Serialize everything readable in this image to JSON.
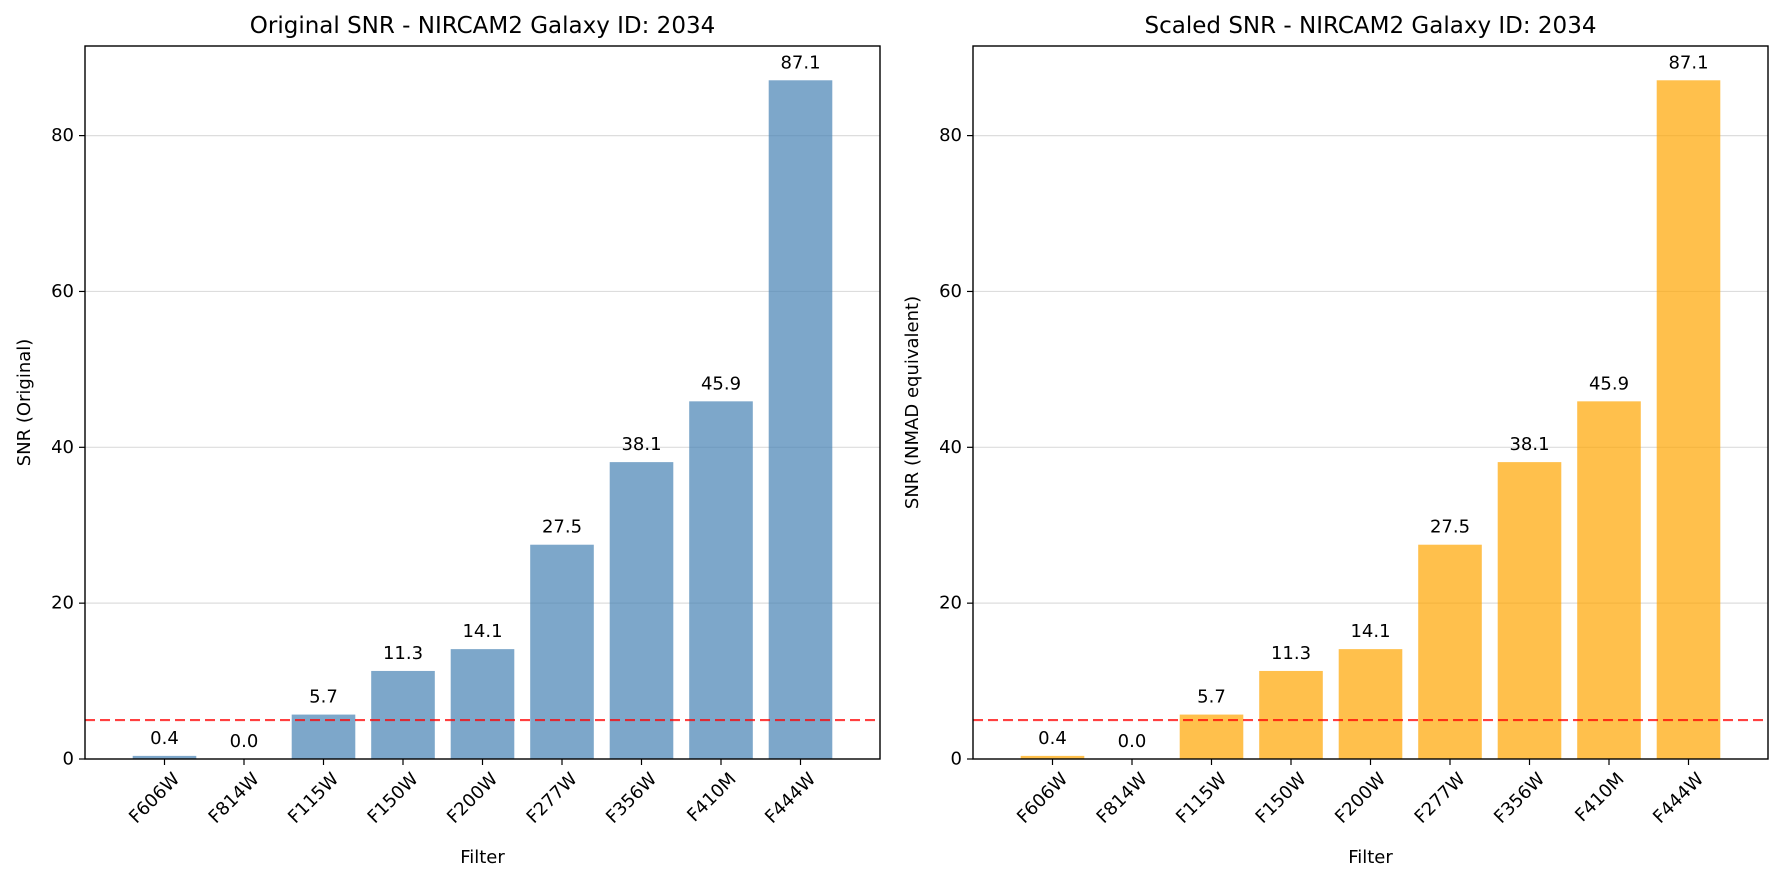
{
  "chart_data": [
    {
      "type": "bar",
      "title": "Original SNR - NIRCAM2 Galaxy ID: 2034",
      "xlabel": "Filter",
      "ylabel": "SNR (Original)",
      "categories": [
        "F606W",
        "F814W",
        "F115W",
        "F150W",
        "F200W",
        "F277W",
        "F356W",
        "F410M",
        "F444W"
      ],
      "values": [
        0.4,
        0.0,
        5.7,
        11.3,
        14.1,
        27.5,
        38.1,
        45.9,
        87.1
      ],
      "value_labels": [
        "0.4",
        "0.0",
        "5.7",
        "11.3",
        "14.1",
        "27.5",
        "38.1",
        "45.9",
        "87.1"
      ],
      "ylim": [
        0,
        91.5
      ],
      "yticks": [
        0,
        20,
        40,
        60,
        80
      ],
      "threshold": 5,
      "grid": "y",
      "bar_color": "#4682B4",
      "threshold_color": "#FF0000"
    },
    {
      "type": "bar",
      "title": "Scaled SNR - NIRCAM2 Galaxy ID: 2034",
      "xlabel": "Filter",
      "ylabel": "SNR (NMAD equivalent)",
      "categories": [
        "F606W",
        "F814W",
        "F115W",
        "F150W",
        "F200W",
        "F277W",
        "F356W",
        "F410M",
        "F444W"
      ],
      "values": [
        0.4,
        0.0,
        5.7,
        11.3,
        14.1,
        27.5,
        38.1,
        45.9,
        87.1
      ],
      "value_labels": [
        "0.4",
        "0.0",
        "5.7",
        "11.3",
        "14.1",
        "27.5",
        "38.1",
        "45.9",
        "87.1"
      ],
      "ylim": [
        0,
        91.5
      ],
      "yticks": [
        0,
        20,
        40,
        60,
        80
      ],
      "threshold": 5,
      "grid": "y",
      "bar_color": "#FFA500",
      "threshold_color": "#FF0000"
    }
  ]
}
